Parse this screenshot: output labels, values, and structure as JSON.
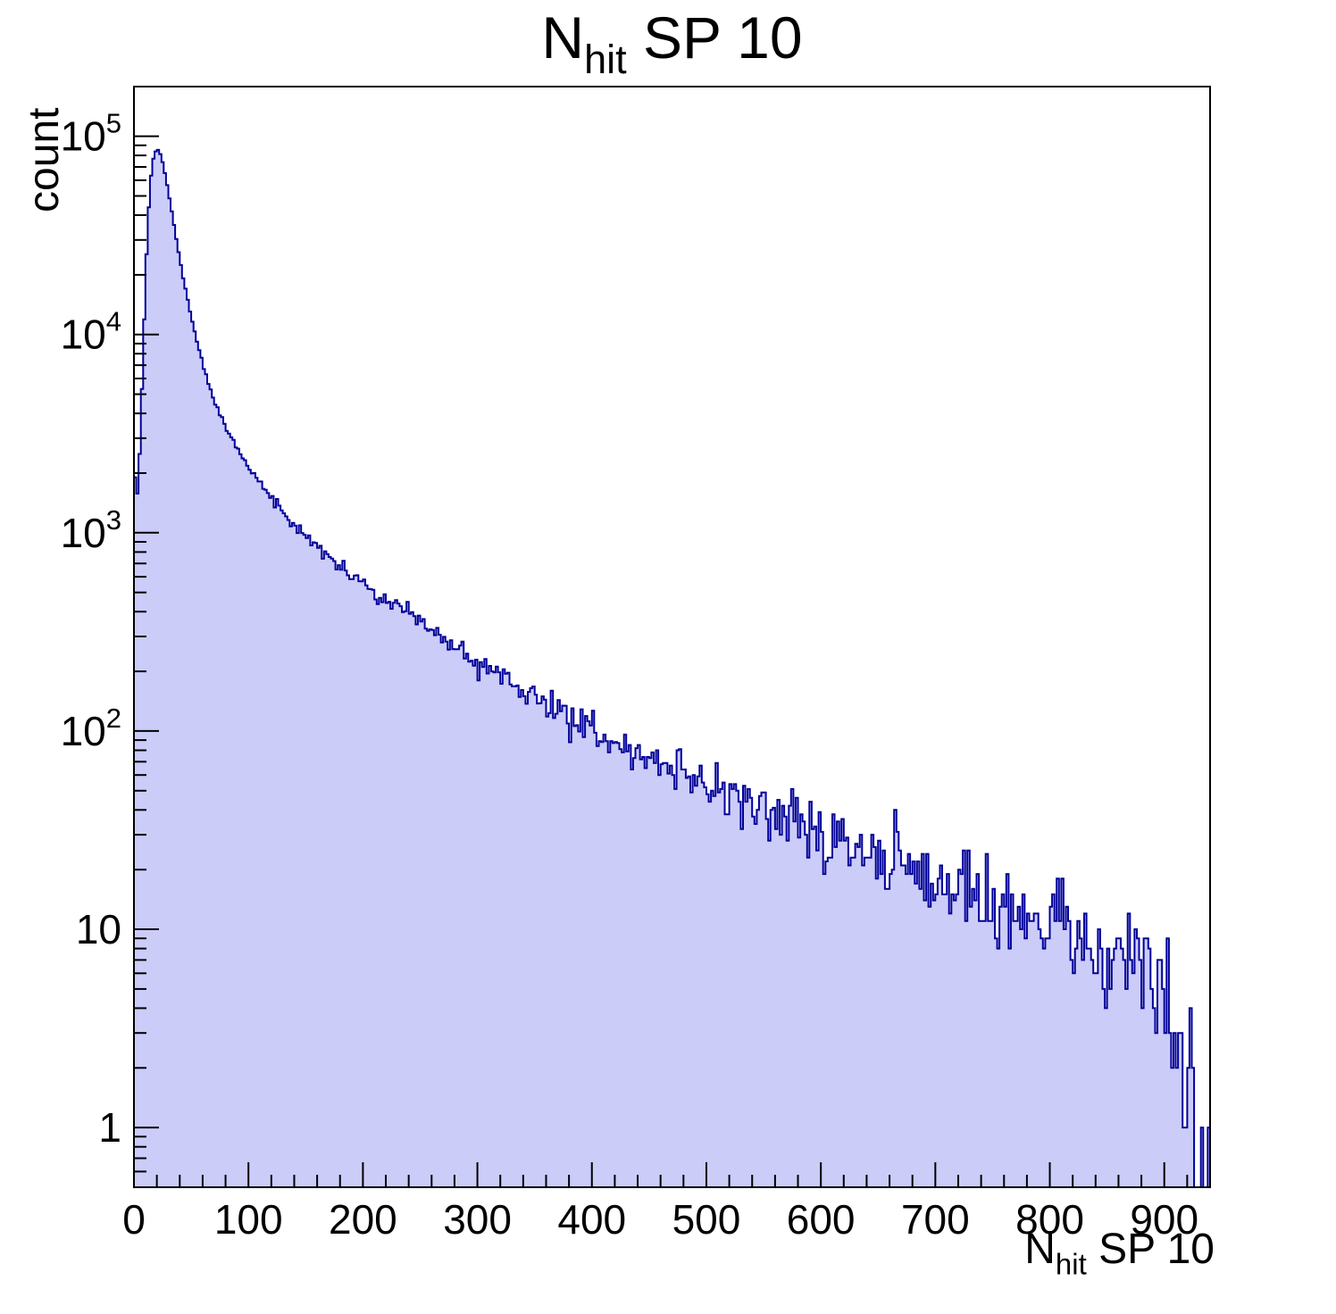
{
  "title": {
    "main": "N",
    "sub": "hit",
    "rest": " SP 10"
  },
  "y_axis": {
    "label": "count",
    "ticks": [
      {
        "value": 1,
        "base": "1",
        "exp": ""
      },
      {
        "value": 10,
        "base": "10",
        "exp": ""
      },
      {
        "value": 100,
        "base": "10",
        "exp": "2"
      },
      {
        "value": 1000,
        "base": "10",
        "exp": "3"
      },
      {
        "value": 10000,
        "base": "10",
        "exp": "4"
      },
      {
        "value": 100000,
        "base": "10",
        "exp": "5"
      }
    ]
  },
  "x_axis": {
    "label_main": "N",
    "label_sub": "hit",
    "label_rest": " SP 10",
    "ticks": [
      0,
      100,
      200,
      300,
      400,
      500,
      600,
      700,
      800,
      900
    ],
    "minor_step": 20
  },
  "chart_data": {
    "type": "bar",
    "subtype": "histogram-log-y",
    "title": "N_{hit} SP 10",
    "xlabel": "N_{hit} SP 10",
    "ylabel": "count",
    "xlim": [
      0,
      940
    ],
    "ylim": [
      0.5,
      178000
    ],
    "ylog": true,
    "grid": false,
    "legend": "none",
    "bin_width": 2,
    "peak": {
      "x": 20,
      "count": 86000
    },
    "anchors": [
      [
        0,
        2600
      ],
      [
        2,
        1400
      ],
      [
        4,
        1800
      ],
      [
        6,
        3500
      ],
      [
        8,
        8000
      ],
      [
        10,
        18000
      ],
      [
        12,
        35000
      ],
      [
        14,
        55000
      ],
      [
        16,
        72000
      ],
      [
        18,
        82000
      ],
      [
        20,
        86000
      ],
      [
        22,
        84000
      ],
      [
        24,
        78000
      ],
      [
        26,
        70000
      ],
      [
        28,
        61000
      ],
      [
        30,
        52000
      ],
      [
        33,
        42000
      ],
      [
        36,
        33000
      ],
      [
        40,
        24000
      ],
      [
        44,
        18000
      ],
      [
        48,
        14000
      ],
      [
        52,
        11000
      ],
      [
        56,
        8800
      ],
      [
        60,
        7200
      ],
      [
        65,
        5700
      ],
      [
        70,
        4700
      ],
      [
        75,
        4000
      ],
      [
        80,
        3450
      ],
      [
        85,
        3000
      ],
      [
        90,
        2650
      ],
      [
        95,
        2380
      ],
      [
        100,
        2150
      ],
      [
        110,
        1780
      ],
      [
        120,
        1500
      ],
      [
        130,
        1290
      ],
      [
        140,
        1110
      ],
      [
        150,
        970
      ],
      [
        160,
        850
      ],
      [
        170,
        760
      ],
      [
        180,
        680
      ],
      [
        190,
        610
      ],
      [
        200,
        550
      ],
      [
        210,
        495
      ],
      [
        220,
        450
      ],
      [
        230,
        412
      ],
      [
        240,
        378
      ],
      [
        250,
        348
      ],
      [
        260,
        320
      ],
      [
        270,
        292
      ],
      [
        280,
        265
      ],
      [
        290,
        242
      ],
      [
        300,
        222
      ],
      [
        310,
        205
      ],
      [
        320,
        190
      ],
      [
        330,
        176
      ],
      [
        340,
        163
      ],
      [
        350,
        151
      ],
      [
        360,
        139
      ],
      [
        370,
        128
      ],
      [
        380,
        118
      ],
      [
        390,
        109
      ],
      [
        400,
        101
      ],
      [
        410,
        95
      ],
      [
        420,
        89
      ],
      [
        430,
        84
      ],
      [
        440,
        79
      ],
      [
        450,
        74
      ],
      [
        460,
        70
      ],
      [
        470,
        66
      ],
      [
        480,
        62
      ],
      [
        490,
        58
      ],
      [
        500,
        55
      ],
      [
        520,
        49
      ],
      [
        540,
        43
      ],
      [
        560,
        38
      ],
      [
        580,
        34
      ],
      [
        600,
        31
      ],
      [
        620,
        28
      ],
      [
        640,
        25
      ],
      [
        660,
        22
      ],
      [
        680,
        20
      ],
      [
        700,
        18
      ],
      [
        720,
        16
      ],
      [
        740,
        15
      ],
      [
        760,
        13
      ],
      [
        780,
        12
      ],
      [
        800,
        11
      ],
      [
        820,
        10
      ],
      [
        840,
        9
      ],
      [
        860,
        8.5
      ],
      [
        880,
        7
      ],
      [
        900,
        5
      ],
      [
        910,
        3.5
      ],
      [
        920,
        2
      ],
      [
        928,
        1
      ],
      [
        934,
        0.7
      ],
      [
        940,
        0.5
      ]
    ],
    "noise_seed": 987654321,
    "noise_scale": 1.0,
    "colors": {
      "fill": "#ccccf9",
      "line": "#000099",
      "axis": "#000000"
    }
  }
}
